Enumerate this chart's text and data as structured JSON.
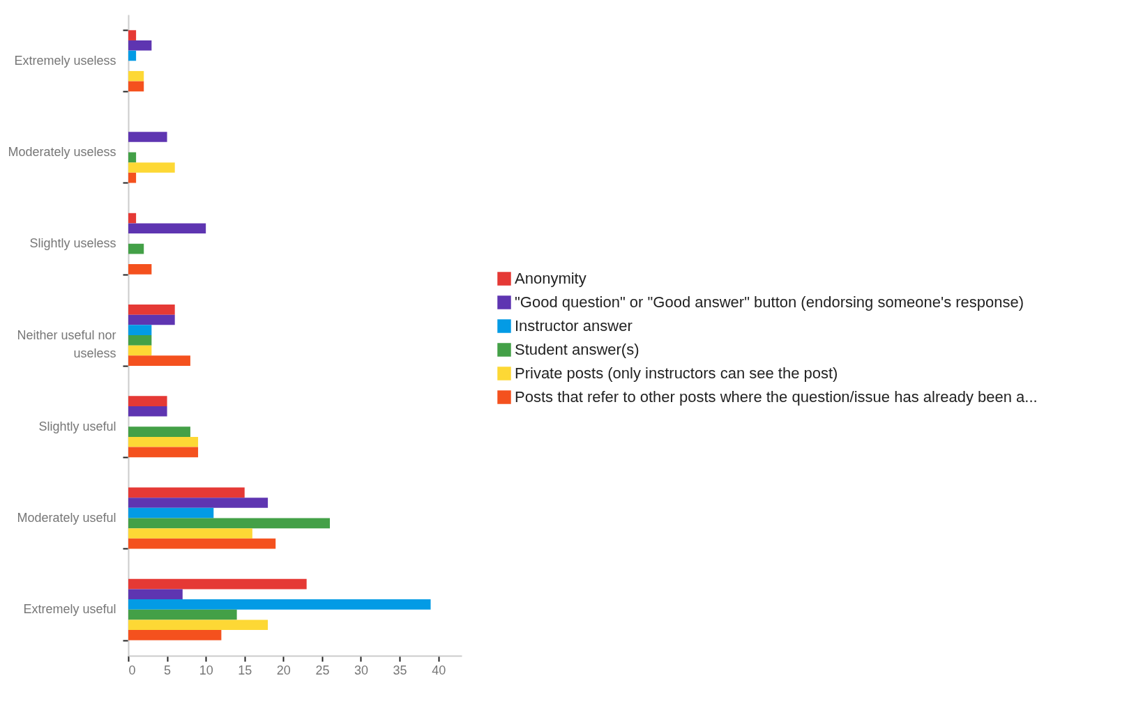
{
  "chart_data": {
    "type": "bar",
    "orientation": "horizontal",
    "categories": [
      "Extremely useless",
      "Moderately useless",
      "Slightly useless",
      "Neither useful nor useless",
      "Slightly useful",
      "Moderately useful",
      "Extremely useful"
    ],
    "series": [
      {
        "name": "Anonymity",
        "color": "#e53935",
        "values": [
          1,
          0,
          1,
          6,
          5,
          15,
          23
        ]
      },
      {
        "name": "\"Good question\" or \"Good answer\" button (endorsing someone's response)",
        "color": "#5e35b1",
        "values": [
          3,
          5,
          10,
          6,
          5,
          18,
          7
        ]
      },
      {
        "name": "Instructor answer",
        "color": "#039be5",
        "values": [
          1,
          0,
          0,
          3,
          0,
          11,
          39
        ]
      },
      {
        "name": "Student answer(s)",
        "color": "#43a047",
        "values": [
          0,
          1,
          2,
          3,
          8,
          26,
          14
        ]
      },
      {
        "name": "Private posts (only instructors can see the post)",
        "color": "#fdd835",
        "values": [
          2,
          6,
          0,
          3,
          9,
          16,
          18
        ]
      },
      {
        "name": "Posts that refer to other posts where the question/issue has already been a...",
        "color": "#f4511e",
        "values": [
          2,
          1,
          3,
          8,
          9,
          19,
          12
        ]
      }
    ],
    "xlim": [
      0,
      43
    ],
    "xticks": [
      0,
      5,
      10,
      15,
      20,
      25,
      30,
      35,
      40
    ],
    "legend": "right"
  }
}
